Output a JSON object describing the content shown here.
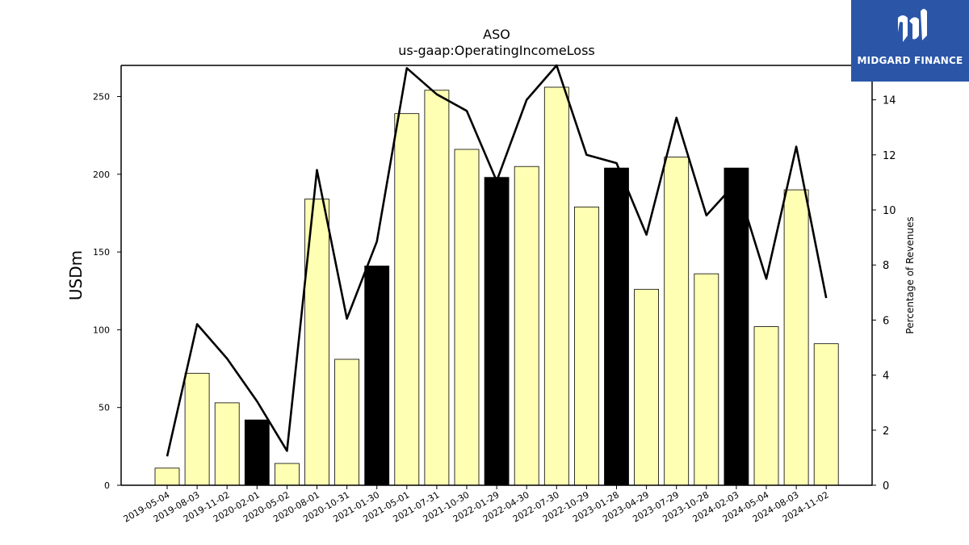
{
  "chart_data": {
    "type": "bar",
    "title": "ASO",
    "subtitle": "us-gaap:OperatingIncomeLoss",
    "ylabel": "USDm",
    "y2label": "Percentage of Revenues",
    "ylim": [
      0,
      270
    ],
    "y2lim": [
      0,
      15.25
    ],
    "yticks": [
      0,
      50,
      100,
      150,
      200,
      250
    ],
    "y2ticks": [
      0,
      2,
      4,
      6,
      8,
      10,
      12,
      14
    ],
    "grid": false,
    "categories": [
      "2019-05-04",
      "2019-08-03",
      "2019-11-02",
      "2020-02-01",
      "2020-05-02",
      "2020-08-01",
      "2020-10-31",
      "2021-01-30",
      "2021-05-01",
      "2021-07-31",
      "2021-10-30",
      "2022-01-29",
      "2022-04-30",
      "2022-07-30",
      "2022-10-29",
      "2023-01-28",
      "2023-04-29",
      "2023-07-29",
      "2023-10-28",
      "2024-02-03",
      "2024-05-04",
      "2024-08-03",
      "2024-11-02"
    ],
    "series": [
      {
        "kind": "bar",
        "values": [
          11,
          72,
          53,
          42,
          14,
          184,
          81,
          141,
          239,
          254,
          216,
          198,
          205,
          256,
          179,
          204,
          126,
          211,
          136,
          204,
          102,
          190,
          91
        ],
        "fiscal_year_end": [
          false,
          false,
          false,
          true,
          false,
          false,
          false,
          true,
          false,
          false,
          false,
          true,
          false,
          false,
          false,
          true,
          false,
          false,
          false,
          true,
          false,
          false,
          false
        ],
        "color": "#ffffb3",
        "fiscal_year_end_color": "#000000"
      },
      {
        "kind": "line",
        "axis": "right",
        "values": [
          1.05,
          5.85,
          4.6,
          3.05,
          1.25,
          11.45,
          6.05,
          8.85,
          15.15,
          14.2,
          13.6,
          11.05,
          14.0,
          15.25,
          12.0,
          11.7,
          9.1,
          13.35,
          9.8,
          11.0,
          7.5,
          12.3,
          6.8
        ],
        "color": "#000000"
      }
    ]
  },
  "logo": {
    "text": "MIDGARD FINANCE",
    "color": "#2b56a8"
  }
}
